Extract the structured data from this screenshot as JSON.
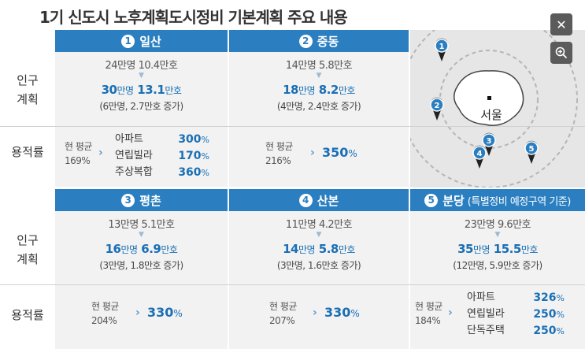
{
  "title": "1기 신도시 노후계획도시정비 기본계획 주요 내용",
  "row_labels": {
    "population_1": "인구",
    "population_2": "계획",
    "far": "용적률"
  },
  "controls": {
    "close_icon": "close-icon",
    "zoom_icon": "zoom-in-icon"
  },
  "map": {
    "seoul_label": "서울"
  },
  "common": {
    "current_avg": "현 평균",
    "pct": "%",
    "man": "만",
    "myeong": "명",
    "ho": "호"
  },
  "cities": [
    {
      "num": "1",
      "name": "일산",
      "sub": "",
      "before": "24만명 10.4만호",
      "after_pop": "30",
      "after_house": "13.1",
      "increase": "(6만명, 2.7만호 증가)",
      "current_far": "169%",
      "far_table": [
        {
          "label": "아파트",
          "value": "300"
        },
        {
          "label": "연립빌라",
          "value": "170"
        },
        {
          "label": "주상복합",
          "value": "360"
        }
      ]
    },
    {
      "num": "2",
      "name": "중동",
      "sub": "",
      "before": "14만명 5.8만호",
      "after_pop": "18",
      "after_house": "8.2",
      "increase": "(4만명, 2.4만호 증가)",
      "current_far": "216%",
      "far_value": "350"
    },
    {
      "num": "3",
      "name": "평촌",
      "sub": "",
      "before": "13만명 5.1만호",
      "after_pop": "16",
      "after_house": "6.9",
      "increase": "(3만명, 1.8만호 증가)",
      "current_far": "204%",
      "far_value": "330"
    },
    {
      "num": "4",
      "name": "산본",
      "sub": "",
      "before": "11만명 4.2만호",
      "after_pop": "14",
      "after_house": "5.8",
      "increase": "(3만명, 1.6만호 증가)",
      "current_far": "207%",
      "far_value": "330"
    },
    {
      "num": "5",
      "name": "분당",
      "sub": "(특별정비 예정구역 기준)",
      "before": "23만명 9.6만호",
      "after_pop": "35",
      "after_house": "15.5",
      "increase": "(12만명, 5.9만호 증가)",
      "current_far": "184%",
      "far_table": [
        {
          "label": "아파트",
          "value": "326"
        },
        {
          "label": "연립빌라",
          "value": "250"
        },
        {
          "label": "단독주택",
          "value": "250"
        }
      ]
    }
  ]
}
